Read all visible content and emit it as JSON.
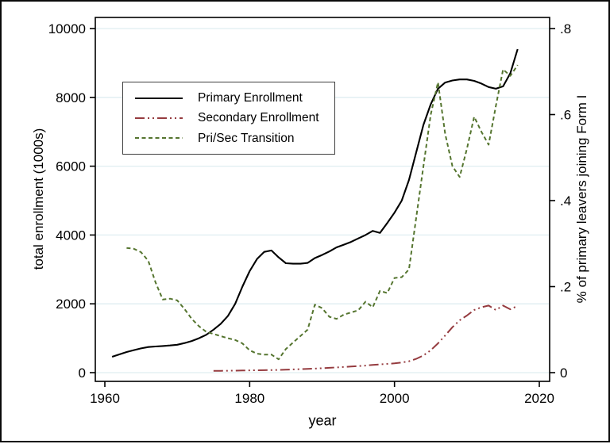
{
  "figure": {
    "background": "#ffffff",
    "border_color": "#0a0a0a"
  },
  "colors": {
    "grid": "#dfeef1",
    "axis": "#000000",
    "text": "#000000",
    "legend_border": "#3f3f3f"
  },
  "chart_data": {
    "type": "line",
    "title": "",
    "xlabel": "year",
    "ylabel_left": "total enrollment (1000s)",
    "ylabel_right": "% of primary leavers joining Form I",
    "x_ticks": [
      1960,
      1980,
      2000,
      2020
    ],
    "y_left_ticks": [
      0,
      2000,
      4000,
      6000,
      8000,
      10000
    ],
    "y_right_ticks": [
      0,
      0.2,
      0.4,
      0.6,
      0.8
    ],
    "y_right_tick_labels": [
      "0",
      ".2",
      ".4",
      ".6",
      ".8"
    ],
    "y_left_range": [
      0,
      10000
    ],
    "y_right_range": [
      0,
      0.8
    ],
    "x_range_shown": [
      1958.7,
      2021.4
    ],
    "grid": "horizontal-only",
    "legend_position": "upper-left-inside",
    "series": [
      {
        "name": "Primary Enrollment",
        "axis": "left",
        "color": "#000000",
        "dash": "solid",
        "width": 2.1,
        "x": [
          1961,
          1962,
          1963,
          1964,
          1965,
          1966,
          1967,
          1968,
          1969,
          1970,
          1971,
          1972,
          1973,
          1974,
          1975,
          1976,
          1977,
          1978,
          1979,
          1980,
          1981,
          1982,
          1983,
          1984,
          1985,
          1986,
          1987,
          1988,
          1989,
          1990,
          1991,
          1992,
          1993,
          1994,
          1995,
          1996,
          1997,
          1998,
          1999,
          2000,
          2001,
          2002,
          2003,
          2004,
          2005,
          2006,
          2007,
          2008,
          2009,
          2010,
          2011,
          2012,
          2013,
          2014,
          2015,
          2016,
          2017
        ],
        "y": [
          460,
          530,
          600,
          655,
          705,
          745,
          760,
          775,
          790,
          810,
          860,
          920,
          1000,
          1100,
          1250,
          1420,
          1650,
          2000,
          2500,
          2950,
          3300,
          3510,
          3550,
          3350,
          3180,
          3165,
          3165,
          3190,
          3330,
          3420,
          3520,
          3640,
          3720,
          3800,
          3900,
          4000,
          4120,
          4060,
          4350,
          4650,
          5000,
          5600,
          6400,
          7200,
          7800,
          8250,
          8430,
          8490,
          8520,
          8520,
          8480,
          8400,
          8300,
          8250,
          8320,
          8700,
          9400
        ]
      },
      {
        "name": "Secondary Enrollment",
        "axis": "left",
        "color": "#953b3f",
        "dash": "dash-dot-dot",
        "width": 2,
        "x": [
          1975,
          1976,
          1977,
          1978,
          1979,
          1980,
          1981,
          1982,
          1983,
          1984,
          1985,
          1986,
          1987,
          1988,
          1989,
          1990,
          1991,
          1992,
          1993,
          1994,
          1995,
          1996,
          1997,
          1998,
          1999,
          2000,
          2001,
          2002,
          2003,
          2004,
          2005,
          2006,
          2007,
          2008,
          2009,
          2010,
          2011,
          2012,
          2013,
          2014,
          2015,
          2016,
          2017
        ],
        "y": [
          50,
          52,
          55,
          58,
          62,
          67,
          70,
          72,
          75,
          78,
          85,
          95,
          102,
          110,
          118,
          128,
          140,
          152,
          165,
          178,
          190,
          205,
          225,
          240,
          255,
          270,
          295,
          330,
          400,
          500,
          650,
          850,
          1080,
          1320,
          1520,
          1660,
          1820,
          1900,
          1950,
          1820,
          1950,
          1840,
          1940
        ]
      },
      {
        "name": "Pri/Sec Transition",
        "axis": "right",
        "color": "#55752f",
        "dash": "short-dash",
        "width": 2,
        "x": [
          1963,
          1964,
          1965,
          1966,
          1967,
          1968,
          1969,
          1970,
          1971,
          1972,
          1973,
          1974,
          1975,
          1976,
          1977,
          1978,
          1979,
          1980,
          1981,
          1982,
          1983,
          1984,
          1985,
          1986,
          1987,
          1988,
          1989,
          1990,
          1991,
          1992,
          1993,
          1994,
          1995,
          1996,
          1997,
          1998,
          1999,
          2000,
          2001,
          2002,
          2003,
          2004,
          2005,
          2006,
          2007,
          2008,
          2009,
          2010,
          2011,
          2012,
          2013,
          2014,
          2015,
          2016,
          2017
        ],
        "y": [
          0.29,
          0.288,
          0.28,
          0.26,
          0.21,
          0.17,
          0.172,
          0.168,
          0.148,
          0.125,
          0.108,
          0.095,
          0.09,
          0.085,
          0.08,
          0.076,
          0.068,
          0.052,
          0.044,
          0.042,
          0.042,
          0.031,
          0.055,
          0.07,
          0.085,
          0.1,
          0.158,
          0.15,
          0.13,
          0.125,
          0.135,
          0.14,
          0.145,
          0.165,
          0.152,
          0.19,
          0.185,
          0.22,
          0.222,
          0.24,
          0.36,
          0.48,
          0.6,
          0.675,
          0.555,
          0.48,
          0.455,
          0.52,
          0.595,
          0.56,
          0.53,
          0.62,
          0.705,
          0.69,
          0.715
        ]
      }
    ]
  }
}
